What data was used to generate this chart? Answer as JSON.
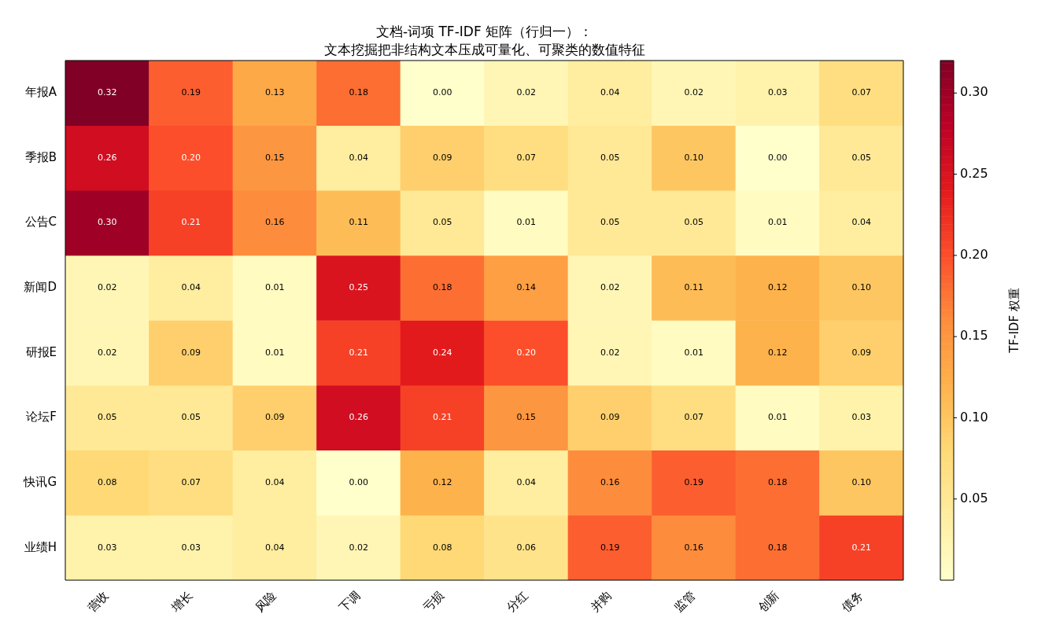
{
  "chart_data": {
    "type": "heatmap",
    "title": "文档-词项 TF-IDF 矩阵（行归一）：",
    "subtitle": "文本挖掘把非结构文本压成可量化、可聚类的数值特征",
    "categories": [
      "营收",
      "增长",
      "风险",
      "下调",
      "亏损",
      "分红",
      "并购",
      "监管",
      "创新",
      "债务"
    ],
    "y_categories": [
      "年报A",
      "季报B",
      "公告C",
      "新闻D",
      "研报E",
      "论坛F",
      "快讯G",
      "业绩H"
    ],
    "cells": [
      [
        0.32,
        0.19,
        0.13,
        0.18,
        0,
        0.02,
        0.04,
        0.02,
        0.03,
        0.07
      ],
      [
        0.26,
        0.2,
        0.15,
        0.04,
        0.09,
        0.07,
        0.05,
        0.1,
        0,
        0.05
      ],
      [
        0.3,
        0.21,
        0.16,
        0.11,
        0.05,
        0.01,
        0.05,
        0.05,
        0.01,
        0.04
      ],
      [
        0.02,
        0.04,
        0.01,
        0.25,
        0.18,
        0.14,
        0.02,
        0.11,
        0.12,
        0.1
      ],
      [
        0.02,
        0.09,
        0.01,
        0.21,
        0.24,
        0.2,
        0.02,
        0.01,
        0.12,
        0.09
      ],
      [
        0.05,
        0.05,
        0.09,
        0.26,
        0.21,
        0.15,
        0.09,
        0.07,
        0.01,
        0.03
      ],
      [
        0.08,
        0.07,
        0.04,
        0,
        0.12,
        0.04,
        0.16,
        0.19,
        0.18,
        0.1
      ],
      [
        0.03,
        0.03,
        0.04,
        0.02,
        0.08,
        0.06,
        0.19,
        0.16,
        0.18,
        0.21
      ]
    ],
    "cell_labels": [
      [
        "0.32",
        "0.19",
        "0.13",
        "0.18",
        "0.00",
        "0.02",
        "0.04",
        "0.02",
        "0.03",
        "0.07"
      ],
      [
        "0.26",
        "0.20",
        "0.15",
        "0.04",
        "0.09",
        "0.07",
        "0.05",
        "0.10",
        "0.00",
        "0.05"
      ],
      [
        "0.30",
        "0.21",
        "0.16",
        "0.11",
        "0.05",
        "0.01",
        "0.05",
        "0.05",
        "0.01",
        "0.04"
      ],
      [
        "0.02",
        "0.04",
        "0.01",
        "0.25",
        "0.18",
        "0.14",
        "0.02",
        "0.11",
        "0.12",
        "0.10"
      ],
      [
        "0.02",
        "0.09",
        "0.01",
        "0.21",
        "0.24",
        "0.20",
        "0.02",
        "0.01",
        "0.12",
        "0.09"
      ],
      [
        "0.05",
        "0.05",
        "0.09",
        "0.26",
        "0.21",
        "0.15",
        "0.09",
        "0.07",
        "0.01",
        "0.03"
      ],
      [
        "0.08",
        "0.07",
        "0.04",
        "0.00",
        "0.12",
        "0.04",
        "0.16",
        "0.19",
        "0.18",
        "0.10"
      ],
      [
        "0.03",
        "0.03",
        "0.04",
        "0.02",
        "0.08",
        "0.06",
        "0.19",
        "0.16",
        "0.18",
        "0.21"
      ]
    ],
    "clabel": "TF-IDF 权重",
    "clim": [
      0,
      0.32
    ],
    "cticks": [
      0.05,
      {
        "value": 0.1,
        "label": "0.10"
      },
      0.15,
      {
        "value": 0.2,
        "label": "0.20"
      },
      0.25,
      {
        "value": 0.3,
        "label": "0.30"
      }
    ]
  }
}
